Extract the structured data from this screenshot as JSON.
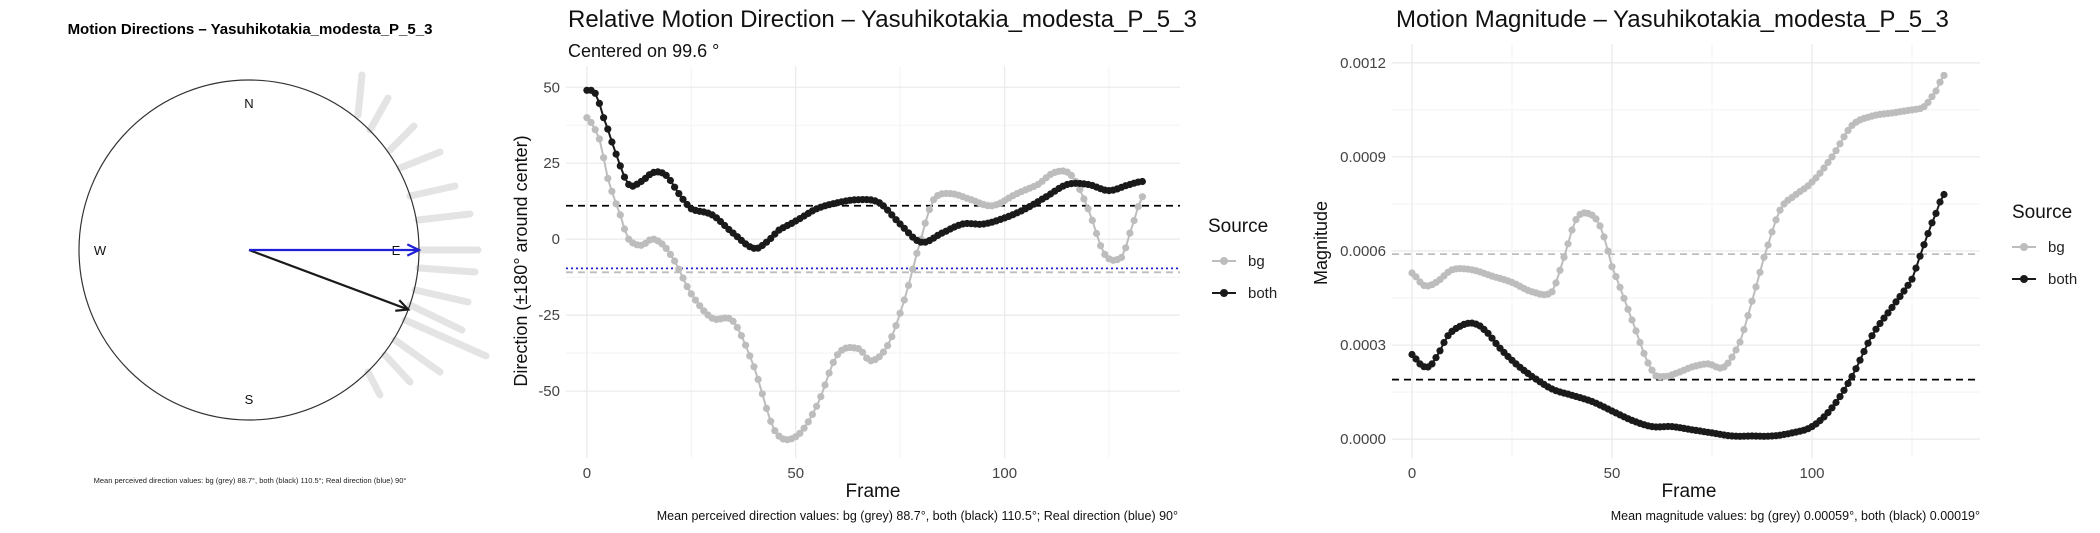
{
  "colors": {
    "grey_series": "#bdbdbd",
    "black_series": "#1a1a1a",
    "real_direction": "#1f1fd6",
    "grid": "#ebebeb",
    "mean_grey_line": "#bdbdbd"
  },
  "compass": {
    "title": "Motion Directions – Yasuhikotakia_modesta_P_5_3",
    "n_label": "N",
    "e_label": "E",
    "s_label": "S",
    "w_label": "W",
    "caption": "Mean perceived direction values: bg (grey) 88.7°, both (black) 110.5°; Real direction (blue) 90°",
    "real_direction_deg": 90,
    "mean_both_deg": 110.5
  },
  "chart_data": [
    {
      "type": "line",
      "title": "Relative Motion Direction – Yasuhikotakia_modesta_P_5_3",
      "subtitle": "Centered on  99.6 °",
      "xlabel": "Frame",
      "ylabel": "Direction (±180° around center)",
      "xlim": [
        -5,
        142
      ],
      "ylim": [
        -72,
        57
      ],
      "x_ticks": [
        0,
        50,
        100
      ],
      "y_ticks": [
        -50,
        -25,
        0,
        25,
        50
      ],
      "legend_title": "Source",
      "legend_position": "right",
      "caption": "Mean perceived direction values: bg (grey) 88.7°, both (black) 110.5°; Real direction (blue) 90°",
      "hlines": [
        {
          "y": 11,
          "style": "dashed",
          "color": "#000000"
        },
        {
          "y": -10.9,
          "style": "dashed",
          "color": "#bdbdbd"
        },
        {
          "y": -9.6,
          "style": "dotted",
          "color": "#1f1fd6"
        }
      ],
      "series": [
        {
          "name": "bg",
          "color": "#bdbdbd",
          "x": [
            0,
            3,
            5,
            8,
            10,
            13,
            16,
            20,
            25,
            30,
            35,
            40,
            45,
            50,
            55,
            60,
            65,
            68,
            72,
            76,
            80,
            83,
            87,
            92,
            97,
            103,
            108,
            112,
            116,
            120,
            124,
            128,
            130,
            133
          ],
          "y": [
            40,
            33,
            20,
            8,
            0,
            -2,
            0,
            -5,
            -18,
            -26,
            -27,
            -42,
            -63,
            -65,
            -55,
            -38,
            -36,
            -40,
            -35,
            -20,
            0,
            13,
            15,
            13,
            11,
            15,
            18,
            22,
            21,
            10,
            -5,
            -6,
            2,
            14
          ]
        },
        {
          "name": "both",
          "color": "#1a1a1a",
          "x": [
            0,
            2,
            4,
            7,
            10,
            13,
            16,
            19,
            22,
            25,
            30,
            35,
            40,
            43,
            46,
            50,
            55,
            60,
            65,
            70,
            75,
            80,
            85,
            90,
            95,
            100,
            105,
            110,
            115,
            120,
            125,
            130,
            133
          ],
          "y": [
            49,
            48,
            40,
            28,
            18,
            19,
            22,
            21,
            15,
            10,
            8,
            2,
            -3,
            -1,
            3,
            6,
            10,
            12,
            13,
            12,
            5,
            -1,
            2,
            5,
            5,
            7,
            10,
            14,
            18,
            18,
            16,
            18,
            19
          ]
        }
      ]
    },
    {
      "type": "line",
      "title": "Motion Magnitude – Yasuhikotakia_modesta_P_5_3",
      "xlabel": "Frame",
      "ylabel": "Magnitude",
      "xlim": [
        -5,
        142
      ],
      "ylim": [
        -6e-05,
        0.00126
      ],
      "x_ticks": [
        0,
        50,
        100
      ],
      "y_ticks": [
        0.0,
        0.0003,
        0.0006,
        0.0009,
        0.0012
      ],
      "y_tick_labels": [
        "0.0000",
        "0.0003",
        "0.0006",
        "0.0009",
        "0.0012"
      ],
      "legend_title": "Source",
      "legend_position": "right",
      "caption": "Mean magnitude values: bg (grey) 0.00059°, both (black) 0.00019°",
      "hlines": [
        {
          "y": 0.00059,
          "style": "dashed",
          "color": "#bdbdbd"
        },
        {
          "y": 0.00019,
          "style": "dashed",
          "color": "#000000"
        }
      ],
      "series": [
        {
          "name": "bg",
          "color": "#bdbdbd",
          "x": [
            0,
            3,
            6,
            10,
            15,
            20,
            25,
            30,
            35,
            38,
            41,
            44,
            47,
            50,
            55,
            60,
            63,
            66,
            70,
            74,
            78,
            82,
            85,
            88,
            92,
            96,
            100,
            105,
            110,
            115,
            120,
            125,
            128,
            131,
            133
          ],
          "y": [
            0.00053,
            0.00049,
            0.0005,
            0.00054,
            0.00054,
            0.00052,
            0.0005,
            0.00047,
            0.00047,
            0.00058,
            0.0007,
            0.00072,
            0.00068,
            0.00055,
            0.00038,
            0.00022,
            0.0002,
            0.00021,
            0.00023,
            0.00024,
            0.00023,
            0.00031,
            0.00044,
            0.00058,
            0.00073,
            0.00078,
            0.00082,
            0.0009,
            0.001,
            0.00103,
            0.00104,
            0.00105,
            0.00106,
            0.00111,
            0.00116
          ]
        },
        {
          "name": "both",
          "color": "#1a1a1a",
          "x": [
            0,
            2,
            4,
            6,
            9,
            12,
            15,
            18,
            22,
            26,
            30,
            35,
            40,
            45,
            50,
            55,
            60,
            65,
            70,
            75,
            80,
            85,
            90,
            95,
            100,
            105,
            110,
            115,
            120,
            125,
            128,
            131,
            133
          ],
          "y": [
            0.00027,
            0.00024,
            0.00023,
            0.00026,
            0.00033,
            0.00036,
            0.00037,
            0.00035,
            0.00029,
            0.00024,
            0.0002,
            0.00016,
            0.00014,
            0.00012,
            9e-05,
            6e-05,
            4e-05,
            4e-05,
            3e-05,
            2e-05,
            1e-05,
            1e-05,
            1e-05,
            2e-05,
            4e-05,
            0.0001,
            0.0002,
            0.00033,
            0.00042,
            0.00051,
            0.00062,
            0.00072,
            0.00078
          ]
        }
      ]
    }
  ]
}
